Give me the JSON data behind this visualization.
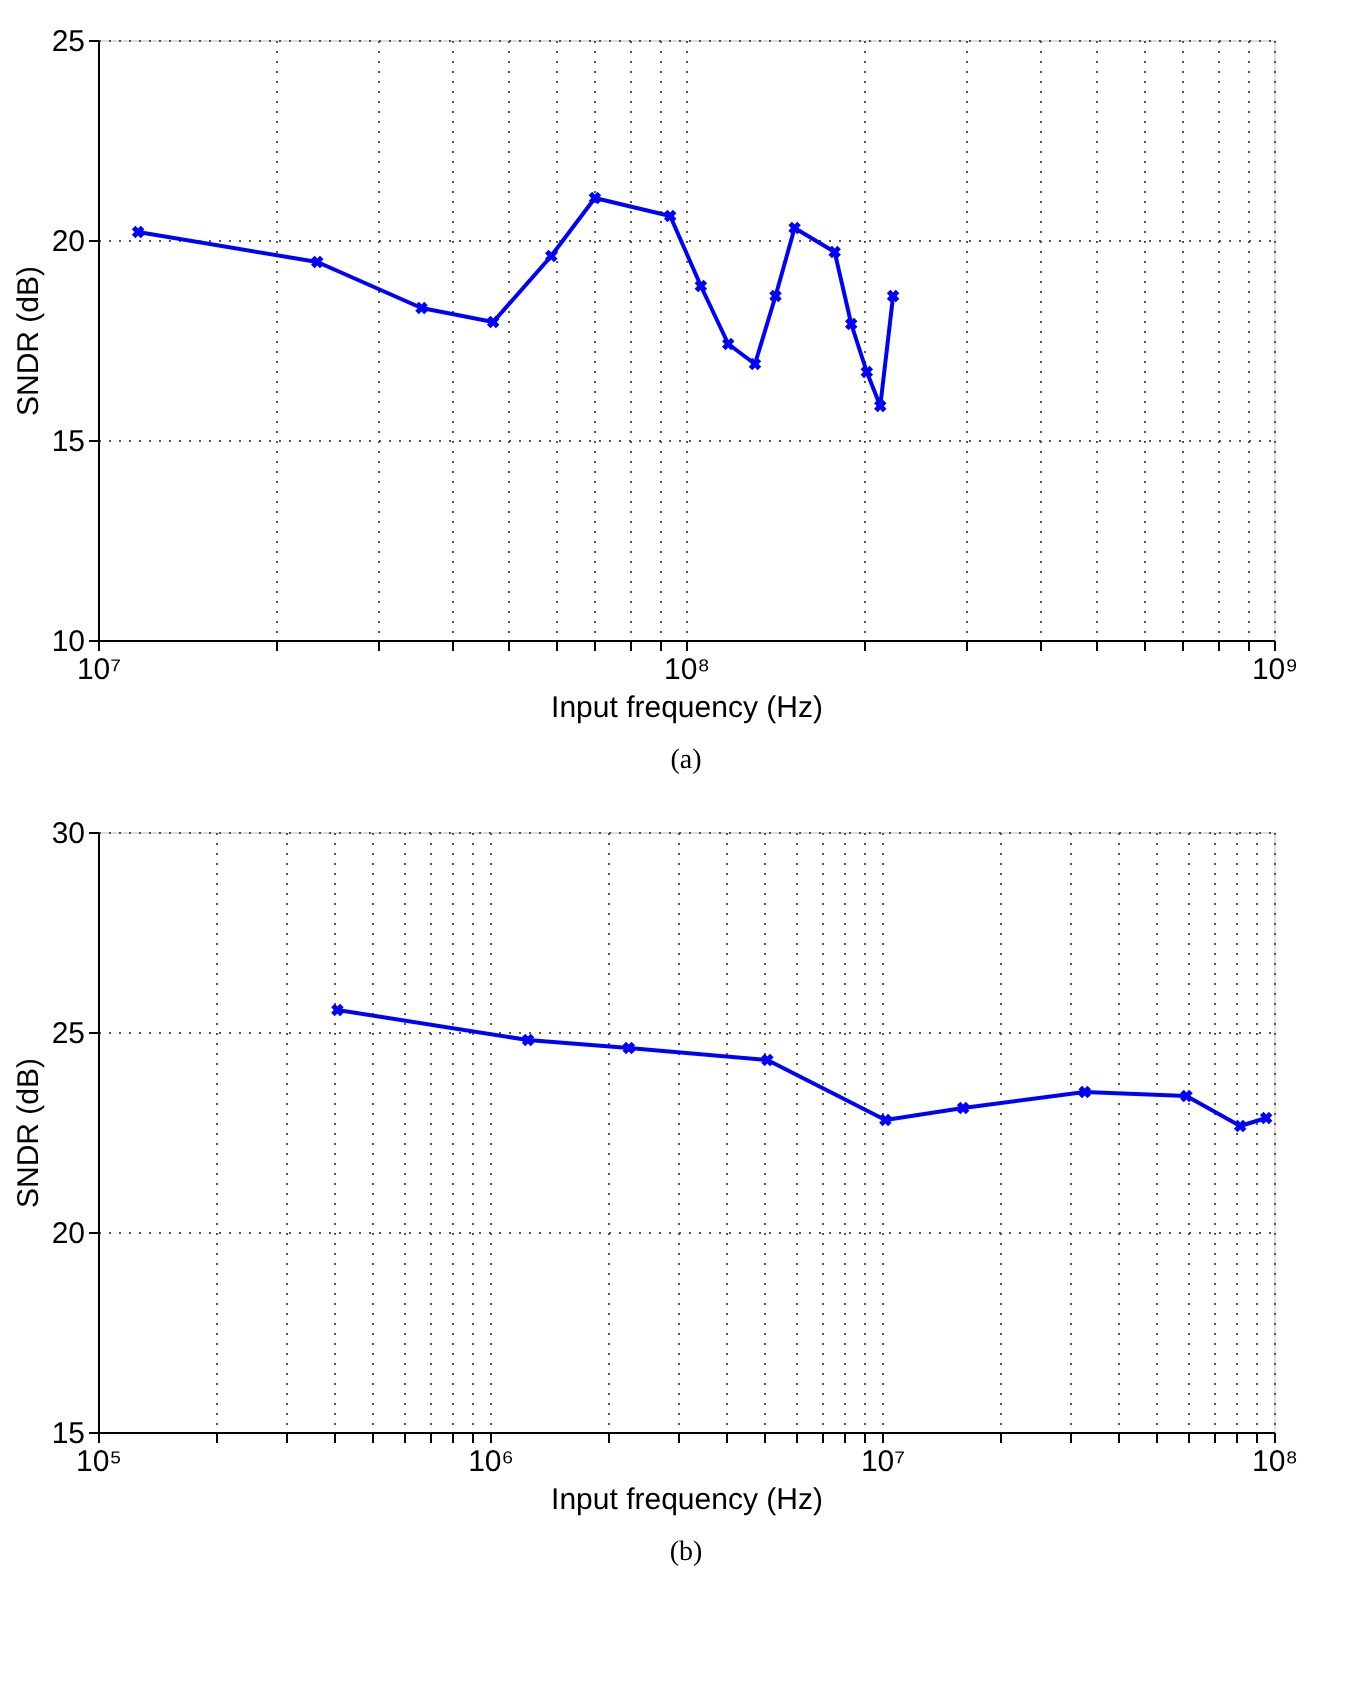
{
  "chart_data": [
    {
      "type": "line",
      "xlabel": "Input frequency (Hz)",
      "ylabel": "SNDR (dB)",
      "annotations": [
        "(a)"
      ],
      "log": "x",
      "grid": true,
      "marker": "cross",
      "line_style": "solid",
      "xlim": [
        10000000,
        1000000000
      ],
      "xticks": [
        {
          "value": 10000000,
          "label": "10⁷"
        },
        {
          "value": 100000000,
          "label": "10⁸"
        },
        {
          "value": 1000000000,
          "label": "10⁹"
        }
      ],
      "ylim": [
        10,
        25
      ],
      "yticks": [
        10,
        15,
        20,
        25
      ],
      "series": [
        {
          "color": "#0000ff",
          "x": [
            11700000,
            23600000,
            35500000,
            47000000,
            59000000,
            70000000,
            94000000,
            106000000,
            118000000,
            131000000,
            142000000,
            153000000,
            179000000,
            191000000,
            203000000,
            214000000,
            225000000
          ],
          "values": [
            20.2,
            19.45,
            18.3,
            17.95,
            19.6,
            21.05,
            20.6,
            18.85,
            17.4,
            16.9,
            18.6,
            20.3,
            19.7,
            17.9,
            16.7,
            15.85,
            18.6
          ]
        }
      ]
    },
    {
      "type": "line",
      "xlabel": "Input frequency (Hz)",
      "ylabel": "SNDR (dB)",
      "annotations": [
        "(b)"
      ],
      "log": "x",
      "grid": true,
      "marker": "cross",
      "line_style": "solid",
      "xlim": [
        100000,
        100000000
      ],
      "xticks": [
        {
          "value": 100000,
          "label": "10⁵"
        },
        {
          "value": 1000000,
          "label": "10⁶"
        },
        {
          "value": 10000000,
          "label": "10⁷"
        },
        {
          "value": 100000000,
          "label": "10⁸"
        }
      ],
      "ylim": [
        15,
        30
      ],
      "yticks": [
        15,
        20,
        25,
        30
      ],
      "series": [
        {
          "color": "#0000ff",
          "x": [
            408000,
            1250000,
            2260000,
            5100000,
            10200000,
            16100000,
            32900000,
            59800000,
            82000000,
            95500000
          ],
          "values": [
            25.55,
            24.8,
            24.6,
            24.3,
            22.8,
            23.1,
            23.5,
            23.4,
            22.65,
            22.85
          ]
        }
      ]
    }
  ]
}
